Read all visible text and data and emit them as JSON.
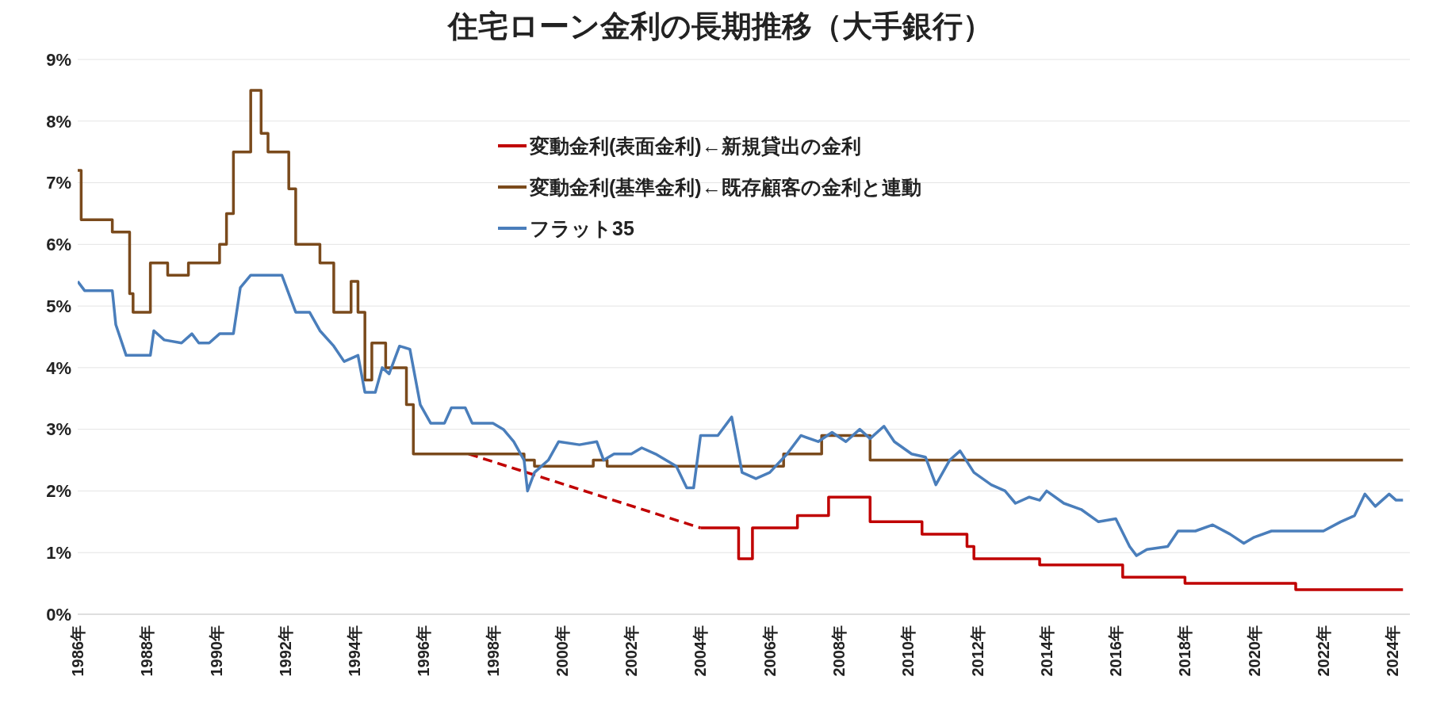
{
  "chart_data": {
    "type": "step",
    "title": "住宅ローン金利の長期推移（大手銀行）",
    "xlim": [
      1986,
      2024.5
    ],
    "xticks": [
      {
        "value": 1986,
        "label": "1986年"
      },
      {
        "value": 1988,
        "label": "1988年"
      },
      {
        "value": 1990,
        "label": "1990年"
      },
      {
        "value": 1992,
        "label": "1992年"
      },
      {
        "value": 1994,
        "label": "1994年"
      },
      {
        "value": 1996,
        "label": "1996年"
      },
      {
        "value": 1998,
        "label": "1998年"
      },
      {
        "value": 2000,
        "label": "2000年"
      },
      {
        "value": 2002,
        "label": "2002年"
      },
      {
        "value": 2004,
        "label": "2004年"
      },
      {
        "value": 2006,
        "label": "2006年"
      },
      {
        "value": 2008,
        "label": "2008年"
      },
      {
        "value": 2010,
        "label": "2010年"
      },
      {
        "value": 2012,
        "label": "2012年"
      },
      {
        "value": 2014,
        "label": "2014年"
      },
      {
        "value": 2016,
        "label": "2016年"
      },
      {
        "value": 2018,
        "label": "2018年"
      },
      {
        "value": 2020,
        "label": "2020年"
      },
      {
        "value": 2022,
        "label": "2022年"
      },
      {
        "value": 2024,
        "label": "2024年"
      }
    ],
    "ylim": [
      0,
      9
    ],
    "yticks": [
      {
        "value": 0,
        "label": "0%"
      },
      {
        "value": 1,
        "label": "1%"
      },
      {
        "value": 2,
        "label": "2%"
      },
      {
        "value": 3,
        "label": "3%"
      },
      {
        "value": 4,
        "label": "4%"
      },
      {
        "value": 5,
        "label": "5%"
      },
      {
        "value": 6,
        "label": "6%"
      },
      {
        "value": 7,
        "label": "7%"
      },
      {
        "value": 8,
        "label": "8%"
      },
      {
        "value": 9,
        "label": "9%"
      }
    ],
    "grid": "y",
    "legend": "top",
    "marker": "none",
    "series": [
      {
        "name": "変動金利(表面金利)←新規貸出の金利",
        "color": "#c00000",
        "line_style": "solid",
        "x": [
          2004.0,
          2005.1,
          2005.5,
          2006.8,
          2007.7,
          2008.9,
          2010.4,
          2011.7,
          2011.9,
          2013.8,
          2016.2,
          2016.6,
          2018.0,
          2021.2,
          2024.3
        ],
        "values": [
          1.4,
          0.9,
          1.4,
          1.6,
          1.9,
          1.5,
          1.3,
          1.1,
          0.9,
          0.8,
          0.6,
          0.6,
          0.5,
          0.4,
          0.4
        ]
      },
      {
        "type": "line",
        "color": "#c00000",
        "line_style": "dashed",
        "x": [
          1997.3,
          2004.0
        ],
        "values": [
          2.6,
          1.4
        ]
      },
      {
        "name": "変動金利(基準金利)←既存顧客の金利と連動",
        "color": "#7a4a1c",
        "line_style": "solid",
        "x": [
          1986.0,
          1986.1,
          1987.0,
          1987.5,
          1987.6,
          1988.1,
          1988.6,
          1989.2,
          1990.1,
          1990.3,
          1990.5,
          1991.0,
          1991.3,
          1991.5,
          1992.1,
          1992.3,
          1993.0,
          1993.4,
          1993.9,
          1994.1,
          1994.3,
          1994.5,
          1994.9,
          1995.5,
          1995.7,
          1998.9,
          1999.2,
          2000.9,
          2001.3,
          2006.4,
          2007.5,
          2008.9,
          2024.3
        ],
        "values": [
          7.2,
          6.4,
          6.2,
          5.2,
          4.9,
          5.7,
          5.5,
          5.7,
          6.0,
          6.5,
          7.5,
          8.5,
          7.8,
          7.5,
          6.9,
          6.0,
          5.7,
          4.9,
          5.4,
          4.9,
          3.8,
          4.4,
          4.0,
          3.4,
          2.6,
          2.5,
          2.4,
          2.5,
          2.4,
          2.6,
          2.9,
          2.5,
          2.5
        ]
      },
      {
        "name": "フラット35",
        "type": "line",
        "color": "#4a7ebb",
        "line_style": "solid",
        "x": [
          1986.0,
          1986.2,
          1987.0,
          1987.1,
          1987.4,
          1988.1,
          1988.2,
          1988.5,
          1989.0,
          1989.3,
          1989.5,
          1989.8,
          1990.1,
          1990.5,
          1990.7,
          1991.0,
          1991.9,
          1992.1,
          1992.3,
          1992.7,
          1993.0,
          1993.4,
          1993.7,
          1994.1,
          1994.3,
          1994.6,
          1994.8,
          1995.0,
          1995.3,
          1995.6,
          1995.9,
          1996.2,
          1996.6,
          1996.8,
          1997.2,
          1997.4,
          1998.0,
          1998.3,
          1998.6,
          1998.9,
          1999.0,
          1999.2,
          1999.6,
          1999.9,
          2000.5,
          2001.0,
          2001.2,
          2001.5,
          2002.0,
          2002.3,
          2002.7,
          2003.3,
          2003.6,
          2003.8,
          2004.0,
          2004.5,
          2004.9,
          2005.2,
          2005.6,
          2006.0,
          2006.5,
          2006.9,
          2007.4,
          2007.8,
          2008.2,
          2008.6,
          2008.9,
          2009.3,
          2009.6,
          2010.1,
          2010.5,
          2010.8,
          2011.2,
          2011.5,
          2011.9,
          2012.4,
          2012.8,
          2013.1,
          2013.5,
          2013.8,
          2014.0,
          2014.5,
          2015.0,
          2015.5,
          2016.0,
          2016.4,
          2016.6,
          2016.9,
          2017.5,
          2017.8,
          2018.3,
          2018.8,
          2019.3,
          2019.7,
          2020.0,
          2020.5,
          2021.2,
          2022.0,
          2022.5,
          2022.9,
          2023.2,
          2023.5,
          2023.9,
          2024.1,
          2024.3
        ],
        "values": [
          5.4,
          5.25,
          5.25,
          4.7,
          4.2,
          4.2,
          4.6,
          4.45,
          4.4,
          4.55,
          4.4,
          4.4,
          4.55,
          4.55,
          5.3,
          5.5,
          5.5,
          5.2,
          4.9,
          4.9,
          4.6,
          4.35,
          4.1,
          4.2,
          3.6,
          3.6,
          4.0,
          3.9,
          4.35,
          4.3,
          3.4,
          3.1,
          3.1,
          3.35,
          3.35,
          3.1,
          3.1,
          3.0,
          2.8,
          2.5,
          2.0,
          2.3,
          2.5,
          2.8,
          2.75,
          2.8,
          2.5,
          2.6,
          2.6,
          2.7,
          2.6,
          2.4,
          2.05,
          2.05,
          2.9,
          2.9,
          3.2,
          2.3,
          2.2,
          2.3,
          2.6,
          2.9,
          2.8,
          2.95,
          2.8,
          3.0,
          2.85,
          3.05,
          2.8,
          2.6,
          2.55,
          2.1,
          2.5,
          2.65,
          2.3,
          2.1,
          2.0,
          1.8,
          1.9,
          1.85,
          2.0,
          1.8,
          1.7,
          1.5,
          1.55,
          1.1,
          0.95,
          1.05,
          1.1,
          1.35,
          1.35,
          1.45,
          1.3,
          1.15,
          1.25,
          1.35,
          1.35,
          1.35,
          1.5,
          1.6,
          1.95,
          1.75,
          1.95,
          1.85,
          1.85
        ]
      }
    ]
  }
}
